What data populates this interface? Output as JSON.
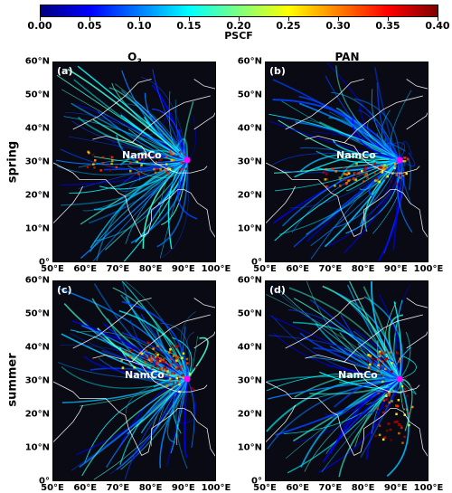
{
  "colorbar": {
    "title": "PSCF",
    "ticks": [
      "0.00",
      "0.05",
      "0.10",
      "0.15",
      "0.20",
      "0.25",
      "0.30",
      "0.35",
      "0.40"
    ],
    "range": [
      0,
      0.4
    ],
    "colormap": [
      "#00007f",
      "#0000ff",
      "#007fff",
      "#00ffff",
      "#7fff7f",
      "#ffff00",
      "#ff7f00",
      "#ff0000",
      "#7f0000"
    ]
  },
  "columns": [
    {
      "title_main": "O",
      "title_sub": "3"
    },
    {
      "title_main": "PAN",
      "title_sub": ""
    }
  ],
  "rows": [
    "spring",
    "summer"
  ],
  "panels": [
    {
      "label": "(a)",
      "site": "NamCo",
      "season": "spring",
      "species": "O3"
    },
    {
      "label": "(b)",
      "site": "NamCo",
      "season": "spring",
      "species": "PAN"
    },
    {
      "label": "(c)",
      "site": "NamCo",
      "season": "summer",
      "species": "O3"
    },
    {
      "label": "(d)",
      "site": "NamCo",
      "season": "summer",
      "species": "PAN"
    }
  ],
  "map": {
    "lat_ticks": [
      "60°N",
      "50°N",
      "40°N",
      "30°N",
      "20°N",
      "10°N",
      "0°"
    ],
    "lon_ticks": [
      "50°E",
      "60°E",
      "70°E",
      "80°E",
      "90°E",
      "100°E"
    ],
    "lat_range": [
      0,
      60
    ],
    "lon_range": [
      50,
      100
    ],
    "site_marker_color": "#ff00ff",
    "site_lonlat": [
      90.9,
      30.8
    ],
    "coastline_color": "#ffffff"
  }
}
